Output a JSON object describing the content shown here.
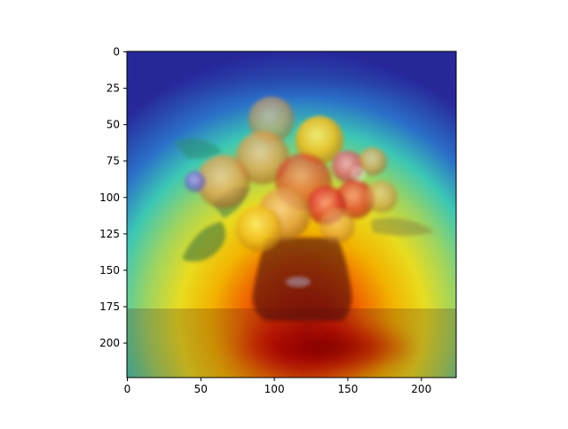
{
  "chart_data": {
    "type": "heatmap",
    "title": "",
    "xlabel": "",
    "ylabel": "",
    "image_size": [
      224,
      224
    ],
    "xlim": [
      0,
      224
    ],
    "ylim": [
      224,
      0
    ],
    "xticks": [
      0,
      50,
      100,
      150,
      200
    ],
    "yticks": [
      0,
      25,
      50,
      75,
      100,
      125,
      150,
      175,
      200
    ],
    "colormap": "jet",
    "overlay": "heatmap blended over photo of a vase of flowers",
    "hotspots": [
      {
        "x": 140,
        "y": 205,
        "intensity": 1.0
      },
      {
        "x": 125,
        "y": 110,
        "intensity": 0.78
      },
      {
        "x": 110,
        "y": 175,
        "intensity": 0.7
      }
    ],
    "grid": false,
    "colors": {
      "cold": "#1e1e96",
      "mid": "#2ec8a0",
      "warm": "#f0d020",
      "hot": "#a00000"
    }
  }
}
